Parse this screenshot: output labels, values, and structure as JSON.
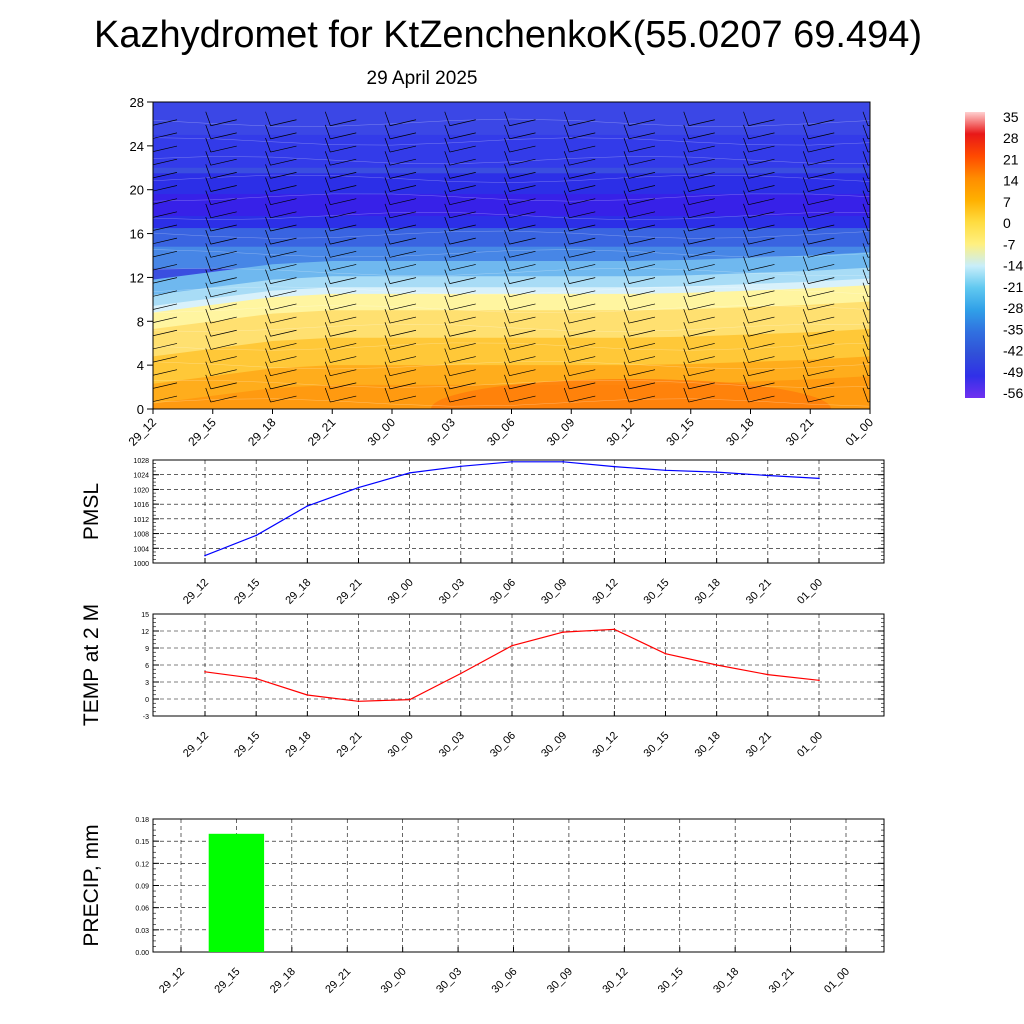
{
  "title": "Kazhydromet for KtZenchenkoK(55.0207 69.494)",
  "subtitle": "29 April 2025",
  "time_labels": [
    "29_12",
    "29_15",
    "29_18",
    "29_21",
    "30_00",
    "30_03",
    "30_06",
    "30_09",
    "30_12",
    "30_15",
    "30_18",
    "30_21",
    "01_00"
  ],
  "colors": {
    "pmsl_line": "#0000ff",
    "temp_line": "#ff0000",
    "precip_bar": "#00ff00",
    "grid": "#000000"
  },
  "chart_data": [
    {
      "type": "heatmap",
      "name": "cross_section",
      "ylim": [
        0,
        28
      ],
      "yticks": [
        0,
        4,
        8,
        12,
        16,
        20,
        24,
        28
      ],
      "x": [
        "29_12",
        "29_15",
        "29_18",
        "29_21",
        "30_00",
        "30_03",
        "30_06",
        "30_09",
        "30_12",
        "30_15",
        "30_18",
        "30_21",
        "01_00"
      ],
      "freezing_level": [
        8.8,
        9.5,
        10.2,
        10.5,
        10.5,
        10.5,
        10.5,
        10.5,
        10.5,
        10.6,
        10.8,
        11.0,
        11.3
      ],
      "colorbar": {
        "labels": [
          "35",
          "28",
          "21",
          "14",
          "7",
          "0",
          "-7",
          "-14",
          "-21",
          "-28",
          "-35",
          "-42",
          "-49",
          "-56"
        ],
        "colors": [
          "#ffd0d0",
          "#e81818",
          "#ff4a00",
          "#ff8c00",
          "#ffb000",
          "#ffdc40",
          "#fff080",
          "#c8eefa",
          "#60c8f0",
          "#30a0e8",
          "#3070e0",
          "#3050d8",
          "#3030e8",
          "#7030f0"
        ]
      },
      "wind_barbs": true
    },
    {
      "type": "line",
      "name": "PMSL",
      "ylabel": "PMSL",
      "ylim": [
        1000,
        1028
      ],
      "yticks": [
        1000,
        1004,
        1008,
        1012,
        1016,
        1020,
        1024,
        1028
      ],
      "grid": true,
      "x": [
        "29_12",
        "29_15",
        "29_18",
        "29_21",
        "30_00",
        "30_03",
        "30_06",
        "30_09",
        "30_12",
        "30_15",
        "30_18",
        "30_21",
        "01_00"
      ],
      "values": [
        1002,
        1007.5,
        1015.5,
        1020.5,
        1024.5,
        1026.3,
        1027.5,
        1027.5,
        1026.2,
        1025.2,
        1024.7,
        1023.8,
        1023
      ]
    },
    {
      "type": "line",
      "name": "TEMP at 2 M",
      "ylabel": "TEMP at 2 M",
      "ylim": [
        -3,
        15
      ],
      "yticks": [
        -3,
        0,
        3,
        6,
        9,
        12,
        15
      ],
      "grid": true,
      "x": [
        "29_12",
        "29_15",
        "29_18",
        "29_21",
        "30_00",
        "30_03",
        "30_06",
        "30_09",
        "30_12",
        "30_15",
        "30_18",
        "30_21",
        "01_00"
      ],
      "values": [
        4.8,
        3.6,
        0.7,
        -0.4,
        -0.1,
        4.5,
        9.4,
        11.8,
        12.3,
        8.0,
        6.0,
        4.3,
        3.3
      ]
    },
    {
      "type": "bar",
      "name": "PRECIP, mm",
      "ylabel": "PRECIP, mm",
      "ylim": [
        0,
        0.18
      ],
      "yticks": [
        "0.00",
        "0.03",
        "0.06",
        "0.09",
        "0.12",
        "0.15",
        "0.18"
      ],
      "grid": true,
      "categories": [
        "29_12",
        "29_15",
        "29_18",
        "29_21",
        "30_00",
        "30_03",
        "30_06",
        "30_09",
        "30_12",
        "30_15",
        "30_18",
        "30_21",
        "01_00"
      ],
      "values": [
        0,
        0.16,
        0,
        0,
        0,
        0,
        0,
        0,
        0,
        0,
        0,
        0,
        0
      ]
    }
  ]
}
